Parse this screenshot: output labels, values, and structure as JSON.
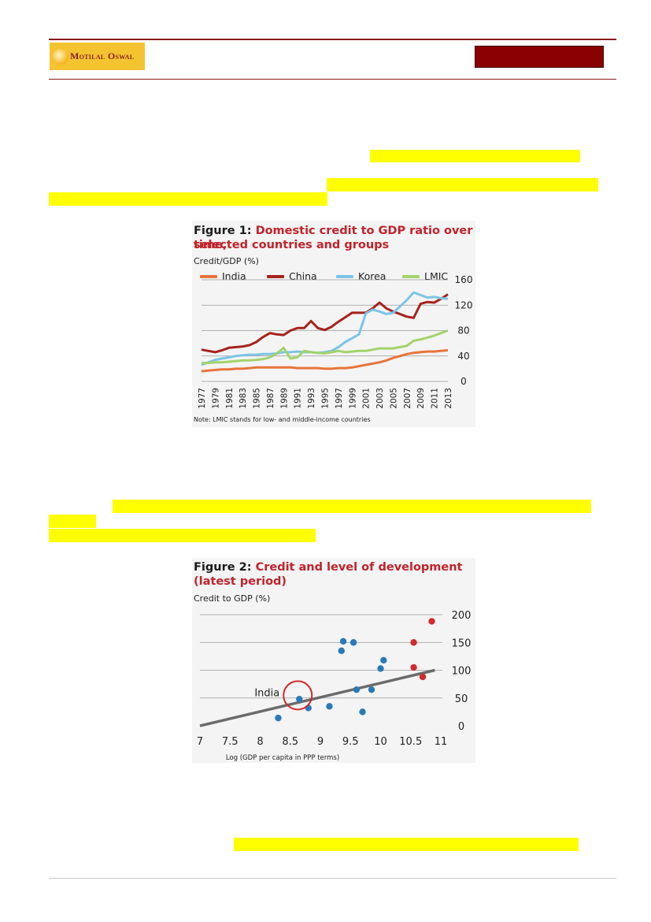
{
  "header": {
    "logo_text": "Motilal Oswal",
    "colors": {
      "rule": "#8b1a1a",
      "logo_bg": "#f4c430",
      "label_box": "#8b0000"
    }
  },
  "highlight_color": "#ffff00",
  "figure1": {
    "fig_number": "Figure 1:",
    "title_line1": "Domestic credit to GDP ratio over time,",
    "title_line2": "selected countries and groups",
    "unit_label": "Credit/GDP (%)",
    "note": "Note: LMIC stands for low- and middle-income countries",
    "chart_data": {
      "type": "line",
      "x": [
        1977,
        1978,
        1979,
        1980,
        1981,
        1982,
        1983,
        1984,
        1985,
        1986,
        1987,
        1988,
        1989,
        1990,
        1991,
        1992,
        1993,
        1994,
        1995,
        1996,
        1997,
        1998,
        1999,
        2000,
        2001,
        2002,
        2003,
        2004,
        2005,
        2006,
        2007,
        2008,
        2009,
        2010,
        2011,
        2012,
        2013
      ],
      "x_tick_labels": [
        "1977",
        "1979",
        "1981",
        "1983",
        "1985",
        "1987",
        "1989",
        "1991",
        "1993",
        "1995",
        "1997",
        "1999",
        "2001",
        "2003",
        "2005",
        "2007",
        "2009",
        "2011",
        "2013"
      ],
      "ylim": [
        0,
        160
      ],
      "y_ticks": [
        0,
        40,
        80,
        120,
        160
      ],
      "legend_position": "top",
      "series": [
        {
          "name": "India",
          "color": "#e8743b",
          "values": [
            16,
            17,
            18,
            19,
            19,
            20,
            20,
            21,
            22,
            22,
            22,
            22,
            22,
            22,
            21,
            21,
            21,
            21,
            20,
            20,
            21,
            21,
            22,
            24,
            26,
            28,
            30,
            33,
            37,
            40,
            43,
            45,
            46,
            47,
            47,
            48,
            49
          ]
        },
        {
          "name": "China",
          "color": "#a5231c",
          "values": [
            50,
            48,
            46,
            49,
            53,
            54,
            55,
            57,
            62,
            70,
            76,
            74,
            73,
            80,
            84,
            84,
            95,
            84,
            81,
            86,
            94,
            101,
            108,
            108,
            108,
            115,
            124,
            115,
            110,
            106,
            102,
            100,
            122,
            125,
            124,
            130,
            137
          ]
        },
        {
          "name": "Korea",
          "color": "#7cc4e8",
          "values": [
            26,
            30,
            34,
            36,
            38,
            40,
            41,
            42,
            42,
            43,
            43,
            44,
            46,
            46,
            47,
            46,
            46,
            45,
            46,
            48,
            54,
            62,
            68,
            74,
            107,
            113,
            110,
            106,
            108,
            118,
            128,
            140,
            136,
            132,
            133,
            131,
            130
          ]
        },
        {
          "name": "LMIC",
          "color": "#a3d36b",
          "values": [
            29,
            29,
            30,
            30,
            31,
            32,
            33,
            33,
            34,
            35,
            38,
            44,
            53,
            36,
            38,
            48,
            46,
            45,
            44,
            46,
            48,
            46,
            47,
            48,
            48,
            50,
            52,
            52,
            52,
            54,
            56,
            64,
            66,
            69,
            72,
            76,
            80
          ]
        }
      ]
    }
  },
  "figure2": {
    "fig_number": "Figure 2:",
    "title_line1": "Credit and level of development",
    "title_line2": "(latest period)",
    "unit_label": "Credit to GDP (%)",
    "india_label": "India",
    "chart_data": {
      "type": "scatter",
      "xlabel": "Log (GDP per capita in PPP terms)",
      "ylabel": "Credit to GDP (%)",
      "xlim": [
        7,
        11
      ],
      "ylim": [
        0,
        200
      ],
      "x_tick_labels": [
        "7",
        "7.5",
        "8",
        "8.5",
        "9",
        "9.5",
        "10",
        "10.5",
        "11"
      ],
      "y_ticks": [
        0,
        50,
        100,
        150,
        200
      ],
      "trend_line": {
        "x": [
          7,
          10.9
        ],
        "y": [
          0,
          100
        ],
        "color": "#6b6b6b"
      },
      "india_marker": {
        "x": 8.65,
        "y": 52
      },
      "series": [
        {
          "color": "#2a7ab8",
          "points": [
            [
              8.3,
              14
            ],
            [
              8.65,
              48
            ],
            [
              8.8,
              32
            ],
            [
              9.15,
              35
            ],
            [
              9.35,
              135
            ],
            [
              9.38,
              152
            ],
            [
              9.55,
              150
            ],
            [
              9.6,
              65
            ],
            [
              9.7,
              25
            ],
            [
              9.85,
              65
            ],
            [
              10.0,
              103
            ],
            [
              10.05,
              118
            ]
          ]
        },
        {
          "color": "#d12b2b",
          "points": [
            [
              10.55,
              150
            ],
            [
              10.55,
              105
            ],
            [
              10.7,
              88
            ],
            [
              10.85,
              188
            ]
          ]
        }
      ]
    }
  }
}
